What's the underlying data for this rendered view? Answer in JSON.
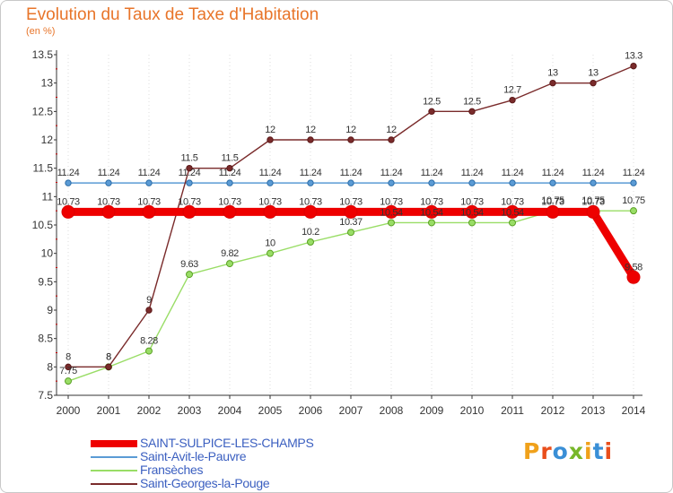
{
  "header": {
    "title": "Evolution du Taux de Taxe d'Habitation",
    "unit": "(en %)"
  },
  "logo": {
    "text": "Proxiti",
    "letter_colors": [
      "#f0a11b",
      "#e94e1b",
      "#3a8fd6",
      "#78b72a",
      "#f0a11b",
      "#3a8fd6",
      "#e94e1b"
    ]
  },
  "chart_data": {
    "type": "line",
    "x": [
      "2000",
      "2001",
      "2002",
      "2003",
      "2004",
      "2005",
      "2006",
      "2007",
      "2008",
      "2009",
      "2010",
      "2011",
      "2012",
      "2013",
      "2014"
    ],
    "ylim": [
      7.5,
      13.5
    ],
    "yticks": [
      "7.5",
      "8",
      "8.5",
      "9",
      "9.5",
      "10",
      "10.5",
      "11",
      "11.5",
      "12",
      "12.5",
      "13",
      "13.5"
    ],
    "grid": "vertical dotted",
    "legend_position": "bottom-left",
    "series": [
      {
        "name": "SAINT-SULPICE-LES-CHAMPS",
        "color": "#ee0000",
        "values": [
          10.73,
          10.73,
          10.73,
          10.73,
          10.73,
          10.73,
          10.73,
          10.73,
          10.73,
          10.73,
          10.73,
          10.73,
          10.73,
          10.73,
          9.58
        ],
        "labels": [
          "10.73",
          "10.73",
          "10.73",
          "10.73",
          "10.73",
          "10.73",
          "10.73",
          "10.73",
          "10.73",
          "10.73",
          "10.73",
          "10.73",
          "10.73",
          "10.73",
          "9.58"
        ]
      },
      {
        "name": "Saint-Avit-le-Pauvre",
        "color": "#5b9bd5",
        "values": [
          11.24,
          11.24,
          11.24,
          11.24,
          11.24,
          11.24,
          11.24,
          11.24,
          11.24,
          11.24,
          11.24,
          11.24,
          11.24,
          11.24,
          11.24
        ],
        "labels": [
          "11.24",
          "11.24",
          "11.24",
          "11.24",
          "11.24",
          "11.24",
          "11.24",
          "11.24",
          "11.24",
          "11.24",
          "11.24",
          "11.24",
          "11.24",
          "11.24",
          "11.24"
        ]
      },
      {
        "name": "Fransèches",
        "color": "#99dd66",
        "values": [
          7.75,
          8,
          8.28,
          9.63,
          9.82,
          10,
          10.2,
          10.37,
          10.54,
          10.54,
          10.54,
          10.54,
          10.75,
          10.75,
          10.75
        ],
        "labels": [
          "7.75",
          "8",
          "8.28",
          "9.63",
          "9.82",
          "10",
          "10.2",
          "10.37",
          "10.54",
          "10.54",
          "10.54",
          "10.54",
          "10.75",
          "10.75",
          "10.75"
        ]
      },
      {
        "name": "Saint-Georges-la-Pouge",
        "color": "#7a2b2b",
        "values": [
          8,
          8,
          9,
          11.5,
          11.5,
          12,
          12,
          12,
          12,
          12.5,
          12.5,
          12.7,
          13,
          13,
          13.3
        ],
        "labels": [
          "8",
          "8",
          "9",
          "11.5",
          "11.5",
          "12",
          "12",
          "12",
          "12",
          "12.5",
          "12.5",
          "12.7",
          "13",
          "13",
          "13.3"
        ]
      }
    ]
  }
}
